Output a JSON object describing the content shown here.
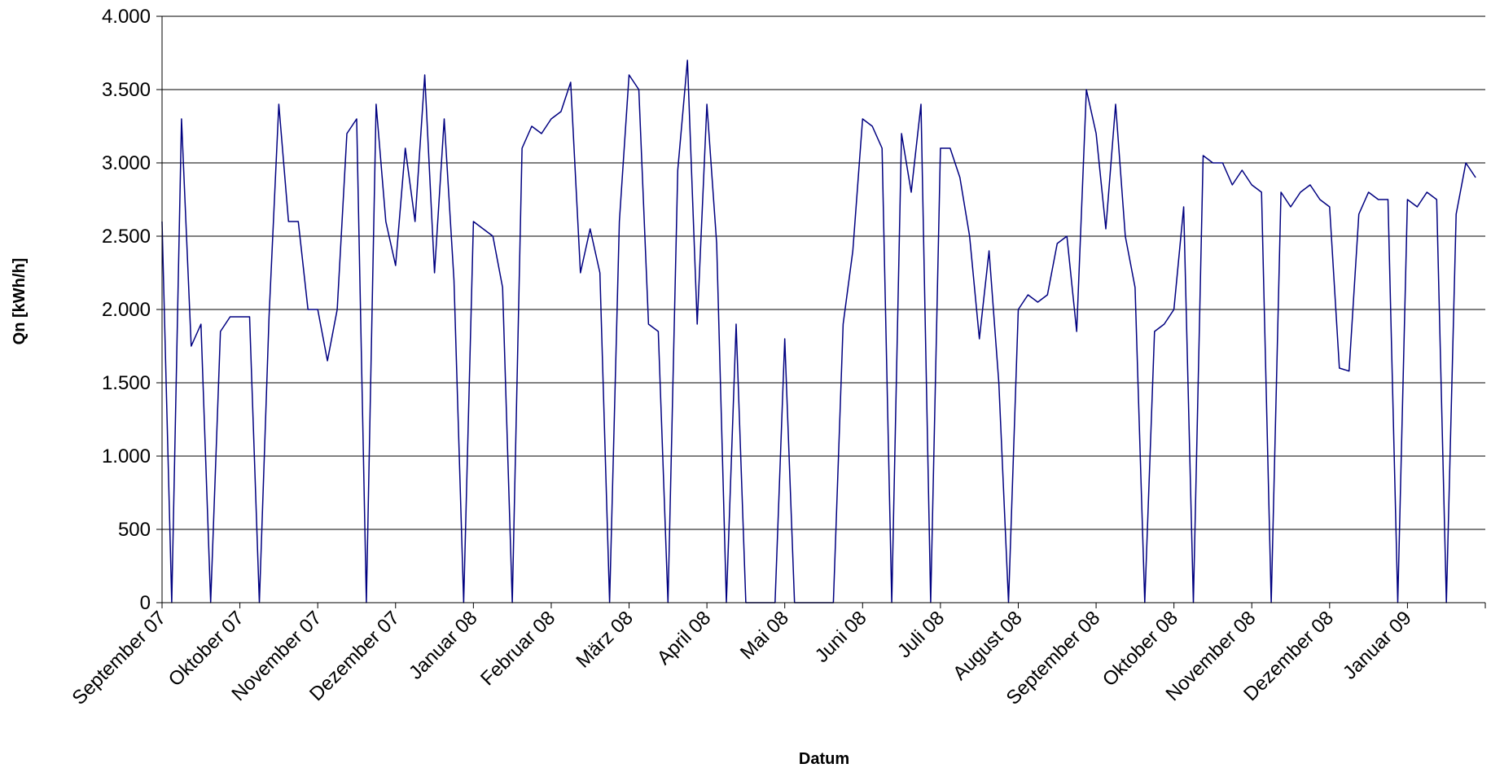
{
  "chart_data": {
    "type": "line",
    "x_label": "Datum",
    "y_label": "Qn [kWh/h]",
    "color": "#000080",
    "grid": true,
    "ylim": [
      0,
      4000
    ],
    "yticks": [
      0,
      {
        "value": 500,
        "label": "500"
      },
      {
        "value": 1000,
        "label": "1.000"
      },
      {
        "value": 1500,
        "label": "1.500"
      },
      {
        "value": 2000,
        "label": "2.000"
      },
      {
        "value": 2500,
        "label": "2.500"
      },
      {
        "value": 3000,
        "label": "3.000"
      },
      {
        "value": 3500,
        "label": "3.500"
      },
      {
        "value": 4000,
        "label": "4.000"
      }
    ],
    "categories": [
      "September 07",
      null,
      null,
      null,
      null,
      null,
      null,
      null,
      "Oktober 07",
      null,
      null,
      null,
      null,
      null,
      null,
      null,
      "November 07",
      null,
      null,
      null,
      null,
      null,
      null,
      null,
      "Dezember 07",
      null,
      null,
      null,
      null,
      null,
      null,
      null,
      "Januar 08",
      null,
      null,
      null,
      null,
      null,
      null,
      null,
      "Februar 08",
      null,
      null,
      null,
      null,
      null,
      null,
      null,
      "März 08",
      null,
      null,
      null,
      null,
      null,
      null,
      null,
      "April 08",
      null,
      null,
      null,
      null,
      null,
      null,
      null,
      "Mai 08",
      null,
      null,
      null,
      null,
      null,
      null,
      null,
      "Juni 08",
      null,
      null,
      null,
      null,
      null,
      null,
      null,
      "Juli 08",
      null,
      null,
      null,
      null,
      null,
      null,
      null,
      "August 08",
      null,
      null,
      null,
      null,
      null,
      null,
      null,
      "September 08",
      null,
      null,
      null,
      null,
      null,
      null,
      null,
      "Oktober 08",
      null,
      null,
      null,
      null,
      null,
      null,
      null,
      "November 08",
      null,
      null,
      null,
      null,
      null,
      null,
      null,
      "Dezember 08",
      null,
      null,
      null,
      null,
      null,
      null,
      null,
      "Januar 09",
      null,
      null,
      null,
      null,
      null,
      null,
      null
    ],
    "values": [
      2600,
      0,
      3300,
      1750,
      1900,
      0,
      1850,
      1950,
      1950,
      1950,
      0,
      1950,
      3400,
      2600,
      2600,
      2000,
      2000,
      1650,
      2000,
      3200,
      3300,
      0,
      3400,
      2600,
      2300,
      3100,
      2600,
      3600,
      2250,
      3300,
      2200,
      0,
      2600,
      2550,
      2500,
      2150,
      0,
      3100,
      3250,
      3200,
      3300,
      3350,
      3550,
      2250,
      2550,
      2250,
      0,
      2600,
      3600,
      3500,
      1900,
      1850,
      0,
      2950,
      3700,
      1900,
      3400,
      2450,
      0,
      1900,
      0,
      0,
      0,
      0,
      1800,
      0,
      0,
      0,
      0,
      0,
      1900,
      2400,
      3300,
      3250,
      3100,
      0,
      3200,
      2800,
      3400,
      0,
      3100,
      3100,
      2900,
      2500,
      1800,
      2400,
      1500,
      0,
      2000,
      2100,
      2050,
      2100,
      2450,
      2500,
      1850,
      3500,
      3200,
      2550,
      3400,
      2500,
      2150,
      0,
      1850,
      1900,
      2000,
      2700,
      0,
      3050,
      3000,
      3000,
      2850,
      2950,
      2850,
      2800,
      0,
      2800,
      2700,
      2800,
      2850,
      2750,
      2700,
      1600,
      1580,
      2650,
      2800,
      2750,
      2750,
      0,
      2750,
      2700,
      2800,
      2750,
      0,
      2650,
      3000,
      2900
    ]
  }
}
